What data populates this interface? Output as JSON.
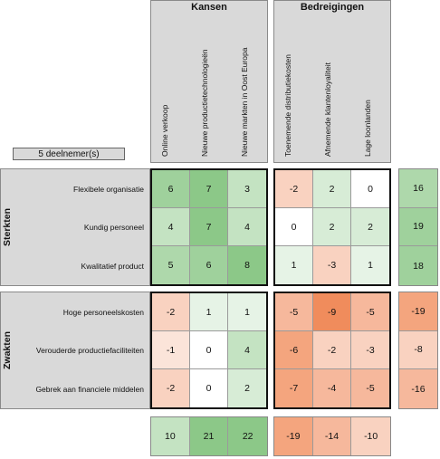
{
  "participants_label": "5 deelnemer(s)",
  "kansen": {
    "title": "Kansen",
    "columns": [
      "Online verkoop",
      "Nieuwe productietechnologieën",
      "Nieuwe markten in Oost Europa"
    ]
  },
  "bedreigingen": {
    "title": "Bedreigingen",
    "columns": [
      "Toenemende distributiekosten",
      "Afnemende klantenloyaliteit",
      "Lage loonlanden"
    ]
  },
  "sterkten": {
    "title": "Sterkten",
    "rows": [
      "Flexibele organisatie",
      "Kundig personeel",
      "Kwalitatief product"
    ]
  },
  "zwakten": {
    "title": "Zwakten",
    "rows": [
      "Hoge personeelskosten",
      "Verouderde productiefaciliteiten",
      "Gebrek aan financiele middelen"
    ]
  },
  "matrix": {
    "sterkten_kansen": [
      [
        "6",
        "7",
        "3"
      ],
      [
        "4",
        "7",
        "4"
      ],
      [
        "5",
        "6",
        "8"
      ]
    ],
    "sterkten_bedreigingen": [
      [
        "-2",
        "2",
        "0"
      ],
      [
        "0",
        "2",
        "2"
      ],
      [
        "1",
        "-3",
        "1"
      ]
    ],
    "zwakten_kansen": [
      [
        "-2",
        "1",
        "1"
      ],
      [
        "-1",
        "0",
        "4"
      ],
      [
        "-2",
        "0",
        "2"
      ]
    ],
    "zwakten_bedreigingen": [
      [
        "-5",
        "-9",
        "-5"
      ],
      [
        "-6",
        "-2",
        "-3"
      ],
      [
        "-7",
        "-4",
        "-5"
      ]
    ]
  },
  "row_totals": {
    "sterkten": [
      "16",
      "19",
      "18"
    ],
    "zwakten": [
      "-19",
      "-8",
      "-16"
    ]
  },
  "column_totals": {
    "kansen": [
      "10",
      "21",
      "22"
    ],
    "bedreigingen": [
      "-19",
      "-14",
      "-10"
    ]
  },
  "colors": {
    "grey_panel": "#d9d9d9",
    "positive_scale": [
      "#ffffff",
      "#e6f3e6",
      "#d7ecd6",
      "#c4e3c2",
      "#aed8ab",
      "#9fd19c",
      "#8cc888"
    ],
    "negative_scale": [
      "#ffffff",
      "#fbe4d9",
      "#f9d2c0",
      "#f6b89c",
      "#f4a57e",
      "#f08c5c"
    ]
  }
}
